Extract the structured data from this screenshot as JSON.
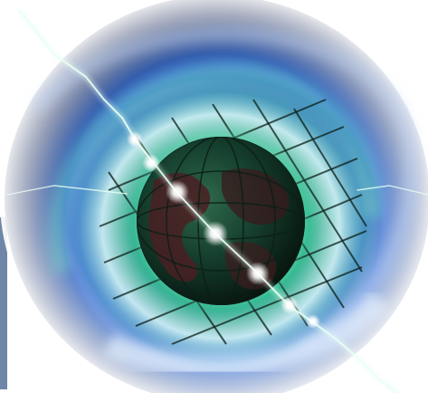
{
  "image": {
    "subject": "glowing-globe-in-vortex",
    "palette": {
      "background": "#ffffff",
      "vortex_blue": "#3a6fd0",
      "vortex_dark": "#2b3d6e",
      "vortex_green": "#2fc58a",
      "globe_dark": "#0d2a22",
      "globe_land": "#4a1f22",
      "grid_lines": "#0c1f18",
      "light_streak": "#e8fff4",
      "node_glow": "#ffffff",
      "left_panel": "#6f86a8"
    },
    "light_nodes": 7
  }
}
